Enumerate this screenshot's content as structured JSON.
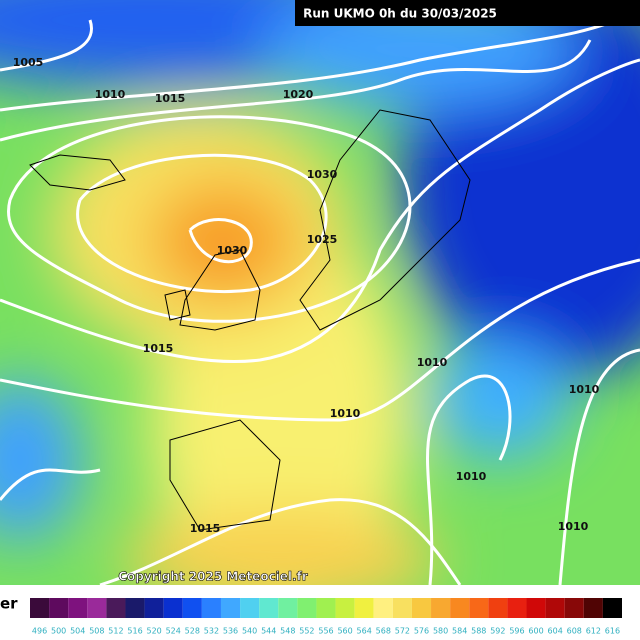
{
  "header": {
    "title": "Run UKMO 0h du 30/03/2025"
  },
  "isobar_labels": [
    "1005",
    "1010",
    "1015",
    "1020",
    "1030",
    "1030",
    "1025",
    "1015",
    "1010",
    "1010",
    "1010",
    "1010",
    "1010",
    "1015"
  ],
  "copyright": "Copyright 2025 Meteociel.fr",
  "legend": {
    "label": "er",
    "ticks": [
      496,
      500,
      504,
      508,
      512,
      516,
      520,
      524,
      528,
      532,
      536,
      540,
      544,
      548,
      552,
      556,
      560,
      564,
      568,
      572,
      576,
      580,
      584,
      588,
      592,
      596,
      600,
      604,
      608,
      612,
      616
    ],
    "colors": [
      "#3a0a3a",
      "#5e0a5e",
      "#7e127e",
      "#9a2a9a",
      "#4a1a5a",
      "#1a1a6a",
      "#10209a",
      "#0a30d0",
      "#1050f0",
      "#2a80ff",
      "#40a8ff",
      "#50d0f0",
      "#60e8d0",
      "#70f0a0",
      "#80f070",
      "#a0f050",
      "#c8f040",
      "#f0f040",
      "#fff080",
      "#f8e060",
      "#f8c840",
      "#f8a830",
      "#f88820",
      "#f86818",
      "#f04010",
      "#e82010",
      "#d00808",
      "#b00808",
      "#880808",
      "#500404",
      "#000000"
    ]
  }
}
